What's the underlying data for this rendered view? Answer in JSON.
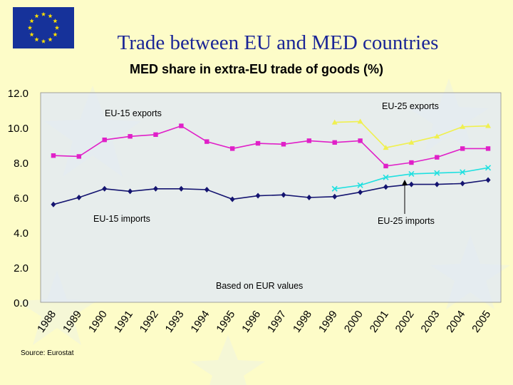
{
  "slide": {
    "title": "Trade between EU and MED countries",
    "colors": {
      "background": "#fdfcc8",
      "title": "#1a2596",
      "flag_blue": "#16329a",
      "flag_star": "#ffe000"
    }
  },
  "chart_data": {
    "type": "line",
    "title": "MED share in extra-EU trade of goods (%)",
    "xlabel": "",
    "ylabel": "",
    "x": [
      "1988",
      "1989",
      "1990",
      "1991",
      "1992",
      "1993",
      "1994",
      "1995",
      "1996",
      "1997",
      "1998",
      "1999",
      "2000",
      "2001",
      "2002",
      "2003",
      "2004",
      "2005"
    ],
    "ylim": [
      0,
      12
    ],
    "yticks": [
      "0.0",
      "2.0",
      "4.0",
      "6.0",
      "8.0",
      "10.0",
      "12.0"
    ],
    "grid": false,
    "series": [
      {
        "name": "EU-15 exports",
        "color": "#e020c8",
        "marker": "square",
        "values": [
          8.4,
          8.35,
          9.3,
          9.5,
          9.6,
          10.1,
          9.2,
          8.8,
          9.1,
          9.05,
          9.25,
          9.15,
          9.25,
          7.8,
          8.0,
          8.3,
          8.8,
          8.8
        ]
      },
      {
        "name": "EU-15 imports",
        "color": "#141470",
        "marker": "diamond",
        "values": [
          5.6,
          6.0,
          6.5,
          6.35,
          6.5,
          6.5,
          6.45,
          5.9,
          6.1,
          6.15,
          6.0,
          6.05,
          6.3,
          6.6,
          6.75,
          6.75,
          6.8,
          7.0
        ]
      },
      {
        "name": "EU-25 exports",
        "color": "#f0f050",
        "marker": "triangle",
        "values": [
          null,
          null,
          null,
          null,
          null,
          null,
          null,
          null,
          null,
          null,
          null,
          10.3,
          10.35,
          8.85,
          9.15,
          9.5,
          10.05,
          10.1
        ]
      },
      {
        "name": "EU-25 imports",
        "color": "#20e0e0",
        "marker": "x",
        "values": [
          null,
          null,
          null,
          null,
          null,
          null,
          null,
          null,
          null,
          null,
          null,
          6.5,
          6.7,
          7.15,
          7.35,
          7.4,
          7.45,
          7.7
        ]
      }
    ],
    "annotations": [
      {
        "text": "EU-15 exports"
      },
      {
        "text": "EU-15 imports"
      },
      {
        "text": "EU-25 exports"
      },
      {
        "text": "EU-25 imports"
      },
      {
        "text": "Based on EUR values"
      }
    ],
    "source": "Source: Eurostat"
  }
}
